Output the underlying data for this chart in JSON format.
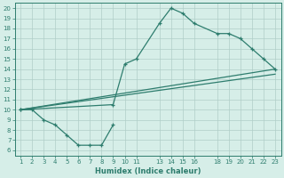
{
  "xlabel": "Humidex (Indice chaleur)",
  "color": "#2e7d6e",
  "bg_color": "#d6eee8",
  "grid_color": "#b0cec8",
  "xlim": [
    0.5,
    23.5
  ],
  "ylim": [
    5.5,
    20.5
  ],
  "xticks": [
    1,
    2,
    3,
    4,
    5,
    6,
    7,
    8,
    9,
    10,
    11,
    13,
    14,
    15,
    16,
    18,
    19,
    20,
    21,
    22,
    23
  ],
  "yticks": [
    6,
    7,
    8,
    9,
    10,
    11,
    12,
    13,
    14,
    15,
    16,
    17,
    18,
    19,
    20
  ],
  "line1_x": [
    1,
    2,
    3,
    4,
    5,
    6,
    7,
    8,
    9
  ],
  "line1_y": [
    10,
    10,
    9,
    8.5,
    7.5,
    6.5,
    6.5,
    6.5,
    8.5
  ],
  "line2_x": [
    1,
    23
  ],
  "line2_y": [
    10,
    14
  ],
  "line3_x": [
    1,
    9,
    10,
    11,
    13,
    14,
    15,
    16,
    18,
    19,
    20,
    21,
    22,
    23
  ],
  "line3_y": [
    10,
    10.5,
    14.5,
    15.0,
    18.5,
    20.0,
    19.5,
    18.5,
    17.5,
    17.5,
    17.0,
    16.0,
    15.0,
    14.0
  ],
  "line4_x": [
    1,
    23
  ],
  "line4_y": [
    10,
    13.5
  ]
}
